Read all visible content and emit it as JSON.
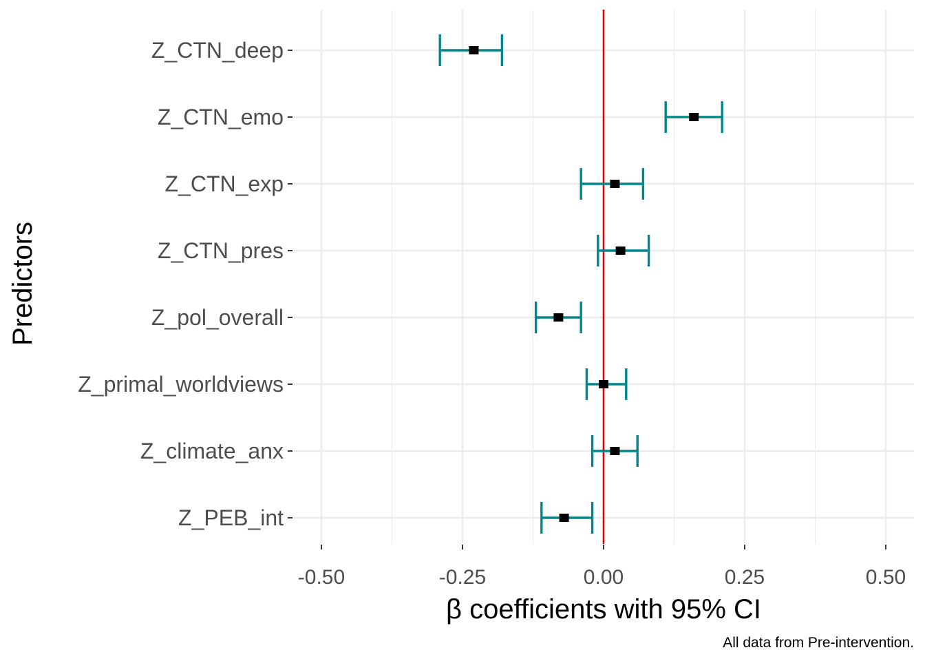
{
  "chart_data": {
    "type": "forest",
    "xlabel": "β coefficients with 95% CI",
    "ylabel": "Predictors",
    "caption": "All data from Pre-intervention.",
    "xlim": [
      -0.55,
      0.55
    ],
    "xticks": [
      -0.5,
      -0.25,
      0.0,
      0.25,
      0.5
    ],
    "xtick_labels": [
      "-0.50",
      "-0.25",
      "0.00",
      "0.25",
      "0.50"
    ],
    "reference_line": 0.0,
    "grid": true,
    "colors": {
      "errorbar": "#00868b",
      "point": "#000000",
      "reference": "#e00000",
      "grid": "#ebebeb"
    },
    "predictors": [
      "Z_CTN_deep",
      "Z_CTN_emo",
      "Z_CTN_exp",
      "Z_CTN_pres",
      "Z_pol_overall",
      "Z_primal_worldviews",
      "Z_climate_anx",
      "Z_PEB_int"
    ],
    "estimates": [
      -0.23,
      0.16,
      0.02,
      0.03,
      -0.08,
      0.0,
      0.02,
      -0.07
    ],
    "ci_lower": [
      -0.29,
      0.11,
      -0.04,
      -0.01,
      -0.12,
      -0.03,
      -0.02,
      -0.11
    ],
    "ci_upper": [
      -0.18,
      0.21,
      0.07,
      0.08,
      -0.04,
      0.04,
      0.06,
      -0.02
    ]
  }
}
